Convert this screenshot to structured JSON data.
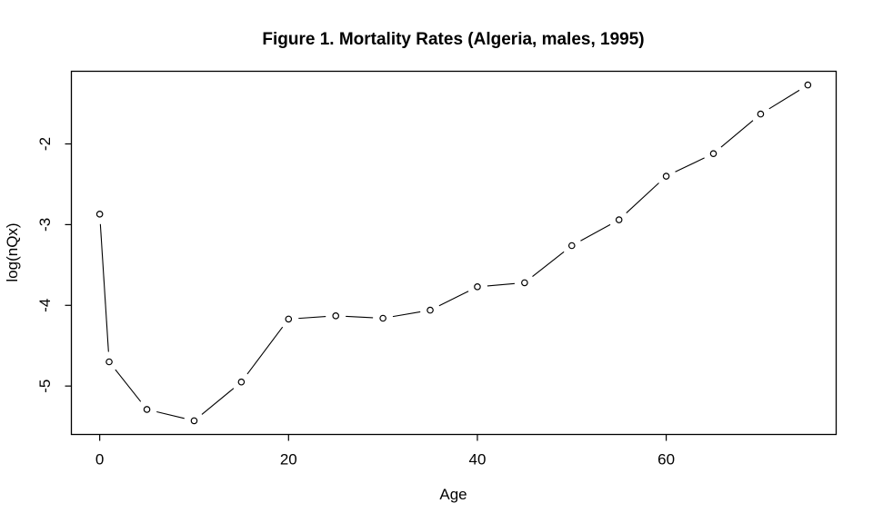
{
  "chart_data": {
    "type": "line",
    "title": "Figure 1. Mortality Rates (Algeria, males, 1995)",
    "xlabel": "Age",
    "ylabel": "log(nQx)",
    "x": [
      0,
      1,
      5,
      10,
      15,
      20,
      25,
      30,
      35,
      40,
      45,
      50,
      55,
      60,
      65,
      70,
      75
    ],
    "y": [
      -2.87,
      -4.7,
      -5.29,
      -5.43,
      -4.95,
      -4.17,
      -4.13,
      -4.16,
      -4.06,
      -3.77,
      -3.72,
      -3.26,
      -2.94,
      -2.4,
      -2.12,
      -1.63,
      -1.27
    ],
    "x_ticks": [
      0,
      20,
      40,
      60
    ],
    "y_ticks": [
      -5,
      -4,
      -3,
      -2
    ],
    "xlim": [
      -3,
      78
    ],
    "ylim": [
      -5.6,
      -1.1
    ],
    "marker": "open-circle",
    "style": "points-and-lines-with-gaps",
    "grid": false,
    "legend": "none",
    "line_color": "#000000",
    "background_color": "#ffffff"
  }
}
